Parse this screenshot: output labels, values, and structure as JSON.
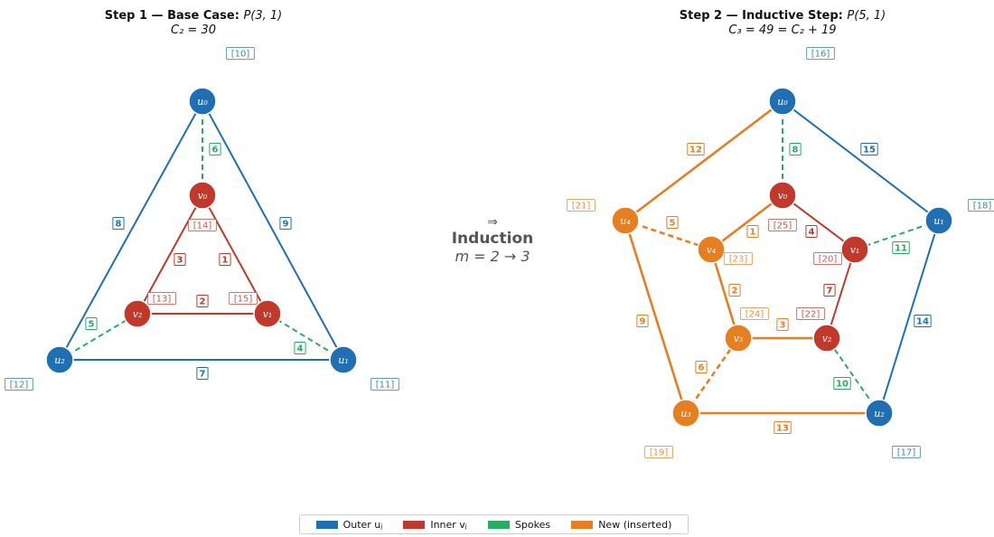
{
  "colors": {
    "outer": "#1f6fb2",
    "inner": "#c0392b",
    "spoke": "#27ae60",
    "new": "#e67e22"
  },
  "header": {
    "left_line1_bold": "Step 1 — Base Case:",
    "left_line1_math": "P(3, 1)",
    "left_line2": "C₂ = 30",
    "right_line1_bold": "Step 2 — Inductive Step:",
    "right_line1_math": "P(5, 1)",
    "right_line2": "C₃ = 49 = C₂ + 19"
  },
  "center": {
    "arrow": "⇒",
    "word": "Induction",
    "sub": "m = 2 → 3"
  },
  "legend": {
    "outer": "Outer uⱼ",
    "inner": "Inner vⱼ",
    "spokes": "Spokes",
    "new": "New (inserted)"
  },
  "left_graph": {
    "nodes": [
      {
        "id": "u0",
        "label": "u₀",
        "group": "outer",
        "tag": "[10]"
      },
      {
        "id": "u1",
        "label": "u₁",
        "group": "outer",
        "tag": "[11]"
      },
      {
        "id": "u2",
        "label": "u₂",
        "group": "outer",
        "tag": "[12]"
      },
      {
        "id": "v0",
        "label": "v₀",
        "group": "inner",
        "tag": "[14]"
      },
      {
        "id": "v1",
        "label": "v₁",
        "group": "inner",
        "tag": "[15]"
      },
      {
        "id": "v2",
        "label": "v₂",
        "group": "inner",
        "tag": "[13]"
      }
    ],
    "edges": [
      {
        "from": "u0",
        "to": "u1",
        "group": "outer",
        "label": "9"
      },
      {
        "from": "u0",
        "to": "u2",
        "group": "outer",
        "label": "8"
      },
      {
        "from": "u1",
        "to": "u2",
        "group": "outer",
        "label": "7"
      },
      {
        "from": "u0",
        "to": "v0",
        "group": "spoke",
        "label": "6"
      },
      {
        "from": "u1",
        "to": "v1",
        "group": "spoke",
        "label": "4"
      },
      {
        "from": "u2",
        "to": "v2",
        "group": "spoke",
        "label": "5"
      },
      {
        "from": "v0",
        "to": "v1",
        "group": "inner",
        "label": "1"
      },
      {
        "from": "v0",
        "to": "v2",
        "group": "inner",
        "label": "3"
      },
      {
        "from": "v1",
        "to": "v2",
        "group": "inner",
        "label": "2"
      }
    ]
  },
  "right_graph": {
    "nodes": [
      {
        "id": "u0",
        "label": "u₀",
        "group": "outer",
        "tag": "[16]"
      },
      {
        "id": "u1",
        "label": "u₁",
        "group": "outer",
        "tag": "[18]"
      },
      {
        "id": "u2",
        "label": "u₂",
        "group": "outer",
        "tag": "[17]"
      },
      {
        "id": "u3",
        "label": "u₃",
        "group": "new",
        "tag": "[19]"
      },
      {
        "id": "u4",
        "label": "u₄",
        "group": "new",
        "tag": "[21]"
      },
      {
        "id": "v0",
        "label": "v₀",
        "group": "inner",
        "tag": "[25]"
      },
      {
        "id": "v1",
        "label": "v₁",
        "group": "inner",
        "tag": "[20]"
      },
      {
        "id": "v2",
        "label": "v₂",
        "group": "inner",
        "tag": "[22]"
      },
      {
        "id": "v3",
        "label": "v₃",
        "group": "new",
        "tag": "[24]"
      },
      {
        "id": "v4",
        "label": "v₄",
        "group": "new",
        "tag": "[23]"
      }
    ],
    "edges": [
      {
        "from": "u0",
        "to": "u1",
        "group": "outer",
        "label": "15"
      },
      {
        "from": "u1",
        "to": "u2",
        "group": "outer",
        "label": "14"
      },
      {
        "from": "u2",
        "to": "u3",
        "group": "new",
        "label": "13"
      },
      {
        "from": "u3",
        "to": "u4",
        "group": "new",
        "label": "9"
      },
      {
        "from": "u4",
        "to": "u0",
        "group": "new",
        "label": "12"
      },
      {
        "from": "u0",
        "to": "v0",
        "group": "spoke",
        "label": "8"
      },
      {
        "from": "u1",
        "to": "v1",
        "group": "spoke",
        "label": "11"
      },
      {
        "from": "u2",
        "to": "v2",
        "group": "spoke",
        "label": "10"
      },
      {
        "from": "u3",
        "to": "v3",
        "group": "newspoke",
        "label": "6"
      },
      {
        "from": "u4",
        "to": "v4",
        "group": "newspoke",
        "label": "5"
      },
      {
        "from": "v0",
        "to": "v1",
        "group": "inner",
        "label": "4"
      },
      {
        "from": "v1",
        "to": "v2",
        "group": "inner",
        "label": "7"
      },
      {
        "from": "v2",
        "to": "v3",
        "group": "new",
        "label": "3"
      },
      {
        "from": "v3",
        "to": "v4",
        "group": "new",
        "label": "2"
      },
      {
        "from": "v4",
        "to": "v0",
        "group": "new",
        "label": "1"
      }
    ]
  }
}
